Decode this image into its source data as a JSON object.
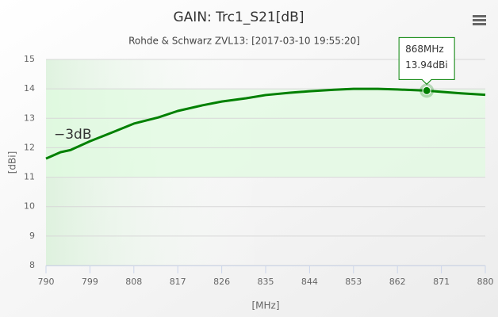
{
  "chart_data": {
    "type": "line",
    "title": "GAIN: Trc1_S21[dB]",
    "subtitle": "Rohde & Schwarz ZVL13: [2017-03-10 19:55:20]",
    "x_label": "[MHz]",
    "y_label": "[dBi]",
    "x": [
      790,
      793,
      795,
      799,
      804,
      808,
      813,
      817,
      822,
      826,
      831,
      835,
      840,
      844,
      849,
      853,
      858,
      862,
      868,
      871,
      875,
      880
    ],
    "series": [
      {
        "color": "#008000",
        "values": [
          11.63,
          11.85,
          11.92,
          12.22,
          12.55,
          12.82,
          13.03,
          13.25,
          13.44,
          13.57,
          13.68,
          13.79,
          13.87,
          13.92,
          13.97,
          14.0,
          14.0,
          13.98,
          13.94,
          13.9,
          13.85,
          13.8
        ]
      }
    ],
    "xlim": [
      790,
      880
    ],
    "xticks": [
      790,
      799,
      808,
      817,
      826,
      835,
      844,
      853,
      862,
      871,
      880
    ],
    "ylim": [
      8,
      15
    ],
    "yticks": [
      8,
      9,
      10,
      11,
      12,
      13,
      14,
      15
    ],
    "grid": true,
    "plot_band": {
      "from": 11,
      "to": 14,
      "label": "−3dB",
      "color": "#e0fbe0"
    },
    "tooltip": {
      "x": 868,
      "y": 13.94,
      "x_label": "868MHz",
      "y_label": "13.94dBi"
    }
  }
}
